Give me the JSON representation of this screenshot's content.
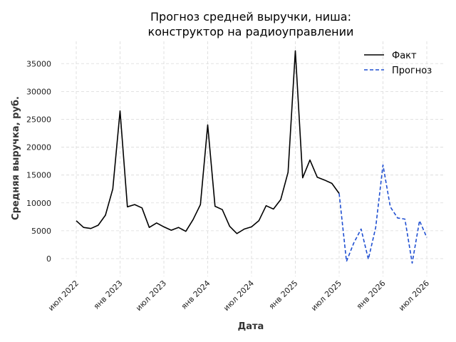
{
  "chart_data": {
    "type": "line",
    "title_lines": [
      "Прогноз средней выручки, ниша:",
      "конструктор на радиоуправлении"
    ],
    "xlabel": "Дата",
    "ylabel": "Средняя выручка, руб.",
    "x_ticks": [
      "июл 2022",
      "янв 2023",
      "июл 2023",
      "янв 2024",
      "июл 2024",
      "янв 2025",
      "июл 2025",
      "янв 2026",
      "июл 2026"
    ],
    "y_ticks": [
      "0",
      "5000",
      "10000",
      "15000",
      "20000",
      "25000",
      "30000",
      "35000"
    ],
    "ylim": [
      -3200,
      39000
    ],
    "grid": true,
    "legend_position": "top-right",
    "series": [
      {
        "name": "Факт",
        "color": "#000000",
        "style": "solid",
        "x": [
          "2022-07",
          "2022-08",
          "2022-09",
          "2022-10",
          "2022-11",
          "2022-12",
          "2023-01",
          "2023-02",
          "2023-03",
          "2023-04",
          "2023-05",
          "2023-06",
          "2023-07",
          "2023-08",
          "2023-09",
          "2023-10",
          "2023-11",
          "2023-12",
          "2024-01",
          "2024-02",
          "2024-03",
          "2024-04",
          "2024-05",
          "2024-06",
          "2024-07",
          "2024-08",
          "2024-09",
          "2024-10",
          "2024-11",
          "2024-12",
          "2025-01",
          "2025-02",
          "2025-03",
          "2025-04",
          "2025-05",
          "2025-06",
          "2025-07"
        ],
        "values": [
          6800,
          5600,
          5400,
          6000,
          7800,
          12500,
          26500,
          9300,
          9700,
          9100,
          5600,
          6400,
          5700,
          5100,
          5600,
          4900,
          7000,
          9700,
          24000,
          9400,
          8800,
          5800,
          4500,
          5300,
          5700,
          6800,
          9500,
          8900,
          10600,
          15500,
          37300,
          14500,
          17700,
          14600,
          14100,
          13500,
          11700
        ]
      },
      {
        "name": "Прогноз",
        "color": "#1f4fd1",
        "style": "dashed",
        "x": [
          "2025-07",
          "2025-08",
          "2025-09",
          "2025-10",
          "2025-11",
          "2025-12",
          "2026-01",
          "2026-02",
          "2026-03",
          "2026-04",
          "2026-05",
          "2026-06",
          "2026-07"
        ],
        "values": [
          11700,
          -500,
          2800,
          5300,
          -100,
          5600,
          16800,
          9300,
          7300,
          7100,
          -800,
          6800,
          3800
        ]
      }
    ]
  }
}
